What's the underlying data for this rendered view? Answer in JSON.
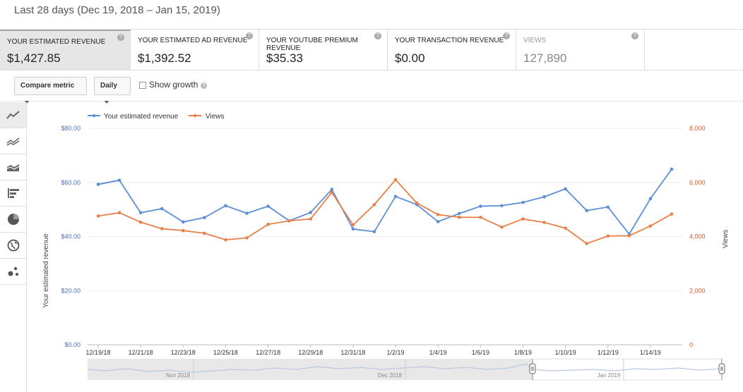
{
  "header": {
    "date_range": "Last 28 days (Dec 19, 2018 – Jan 15, 2019)"
  },
  "metrics": [
    {
      "label": "YOUR ESTIMATED REVENUE",
      "value": "$1,427.85",
      "active": true
    },
    {
      "label": "YOUR ESTIMATED AD REVENUE",
      "value": "$1,392.52",
      "active": false
    },
    {
      "label": "YOUR YOUTUBE PREMIUM REVENUE",
      "value": "$35.33",
      "active": false
    },
    {
      "label": "YOUR TRANSACTION REVENUE",
      "value": "$0.00",
      "active": false
    },
    {
      "label": "VIEWS",
      "value": "127,890",
      "active": false
    }
  ],
  "toolbar": {
    "compare_label": "Compare metric",
    "interval_label": "Daily",
    "show_growth_label": "Show growth",
    "show_growth_checked": false
  },
  "sidebar": {
    "icons": [
      "line-chart-icon",
      "multiline-chart-icon",
      "stacked-area-icon",
      "bar-chart-icon",
      "pie-chart-icon",
      "globe-icon",
      "bubble-chart-icon"
    ],
    "active": "line-chart-icon"
  },
  "navigator": {
    "labels": [
      "Nov 2018",
      "Dec 2018",
      "Jan 2019"
    ]
  },
  "chart_data": {
    "type": "line",
    "x": [
      "12/19/18",
      "12/20/18",
      "12/21/18",
      "12/22/18",
      "12/23/18",
      "12/24/18",
      "12/25/18",
      "12/26/18",
      "12/27/18",
      "12/28/18",
      "12/29/18",
      "12/30/18",
      "12/31/18",
      "1/1/19",
      "1/2/19",
      "1/3/19",
      "1/4/19",
      "1/5/19",
      "1/6/19",
      "1/7/19",
      "1/8/19",
      "1/9/19",
      "1/10/19",
      "1/11/19",
      "1/12/19",
      "1/13/19",
      "1/14/19",
      "1/15/19"
    ],
    "x_tick_labels": [
      "12/19/18",
      "12/21/18",
      "12/23/18",
      "12/25/18",
      "12/27/18",
      "12/29/18",
      "12/31/18",
      "1/2/19",
      "1/4/19",
      "1/6/19",
      "1/8/19",
      "1/10/19",
      "1/12/19",
      "1/14/19"
    ],
    "series": [
      {
        "name": "Your estimated revenue",
        "axis": "left",
        "color": "#5b8fd6",
        "values": [
          59.3,
          60.8,
          48.8,
          50.3,
          45.4,
          47.0,
          51.4,
          48.6,
          51.2,
          45.8,
          48.9,
          57.4,
          42.8,
          41.8,
          54.8,
          51.8,
          45.5,
          48.5,
          51.2,
          51.4,
          52.6,
          54.7,
          57.6,
          49.6,
          50.9,
          40.9,
          54.0,
          64.9
        ]
      },
      {
        "name": "Views",
        "axis": "right",
        "color": "#e8804a",
        "values": [
          4760,
          4880,
          4530,
          4290,
          4220,
          4120,
          3880,
          3950,
          4450,
          4580,
          4650,
          5630,
          4430,
          5180,
          6100,
          5240,
          4810,
          4710,
          4710,
          4350,
          4650,
          4520,
          4310,
          3740,
          4020,
          4030,
          4390,
          4830
        ]
      }
    ],
    "ylabel": "Your estimated revenue",
    "y2label": "Views",
    "yticks": [
      "$0.00",
      "$20.00",
      "$40.00",
      "$60.00",
      "$80.00"
    ],
    "y2ticks": [
      "0",
      "2,000",
      "4,000",
      "6,000",
      "8,000"
    ],
    "ylim": [
      0,
      80
    ],
    "y2lim": [
      0,
      8000
    ],
    "grid": true,
    "legend": "top-left"
  }
}
